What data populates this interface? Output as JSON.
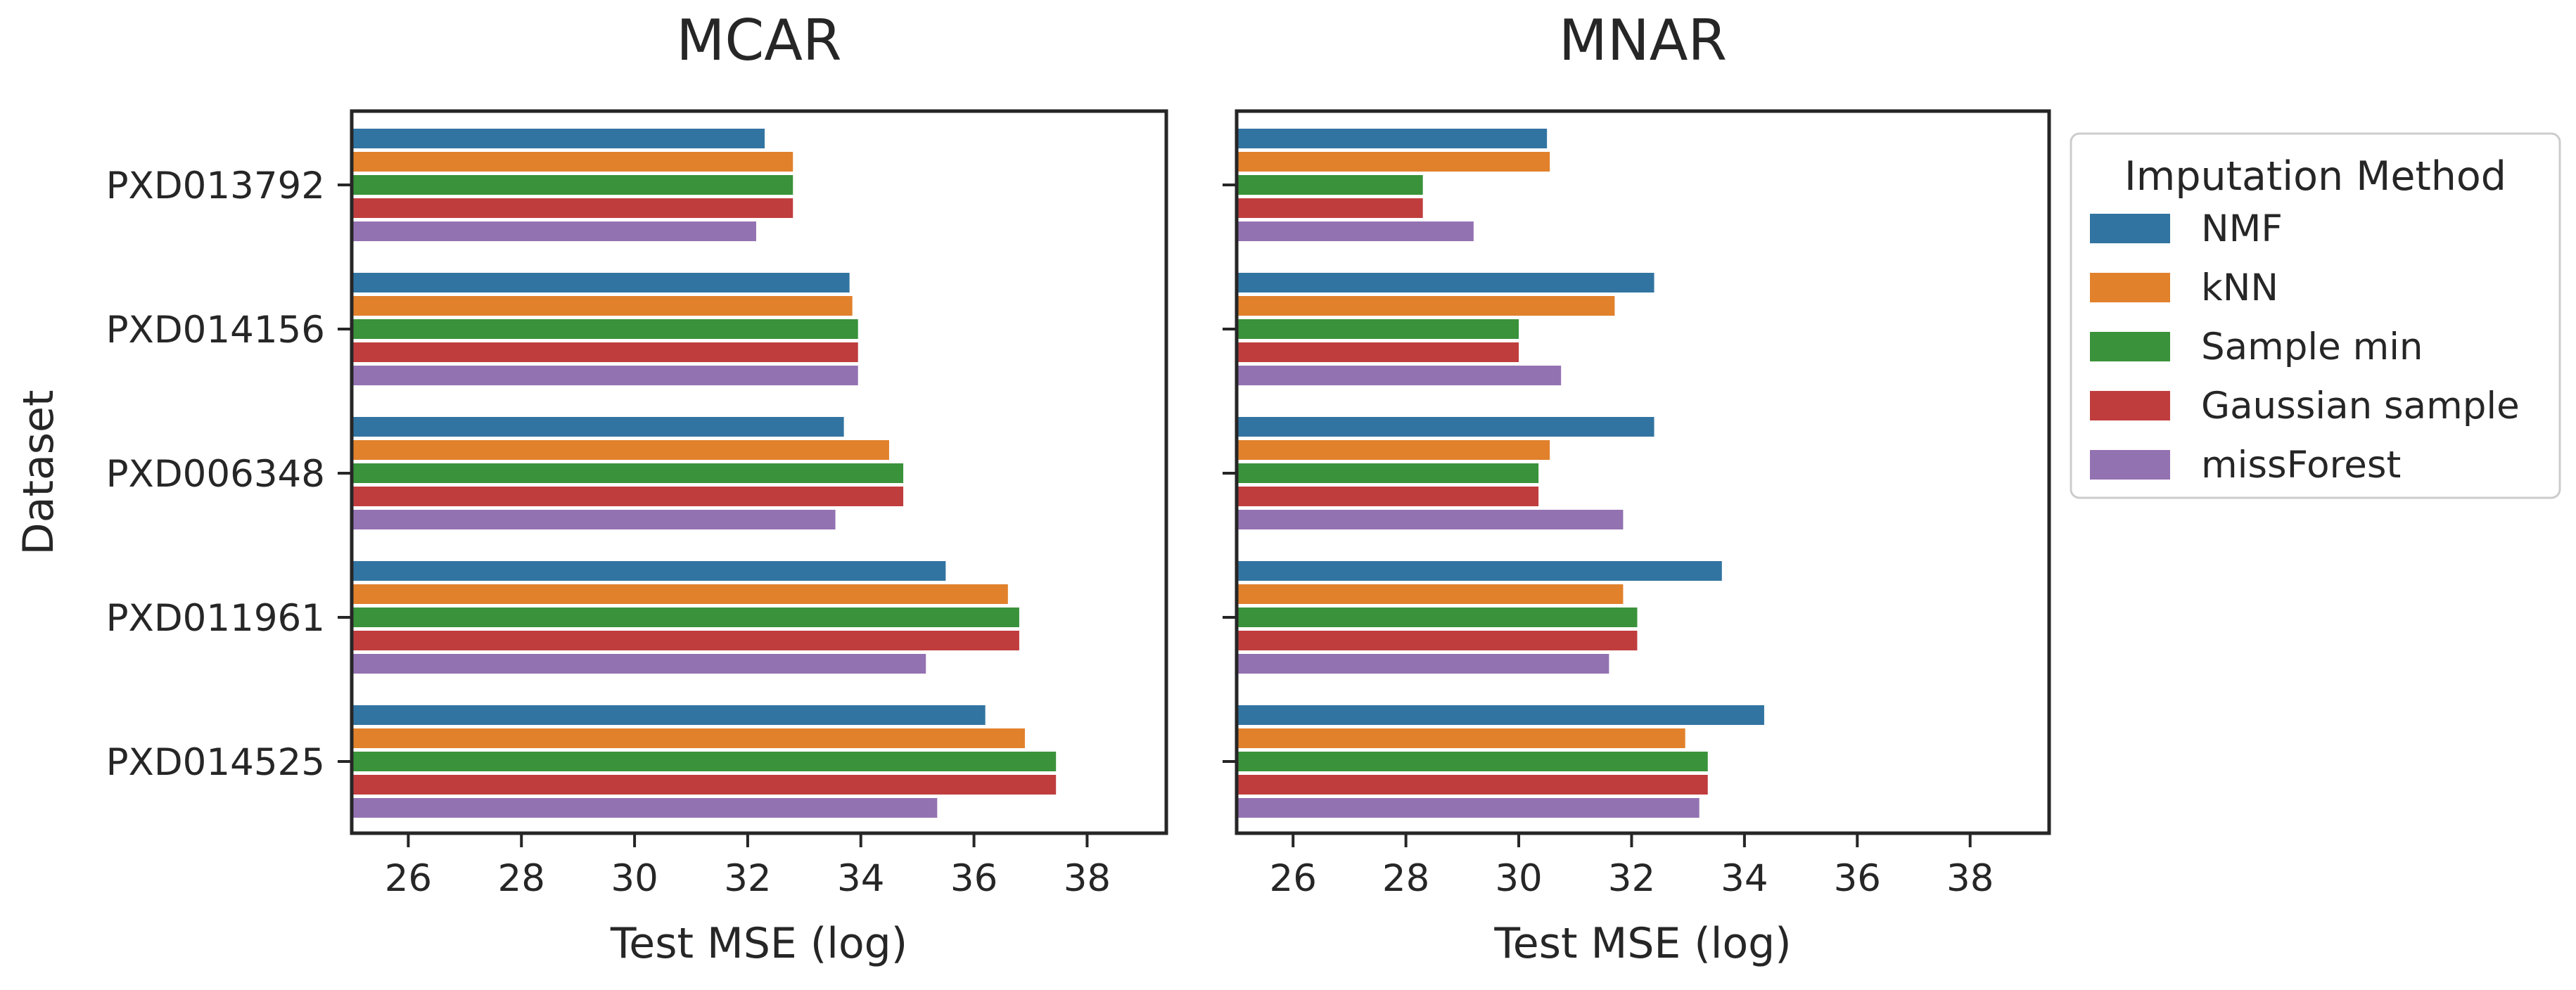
{
  "chart_data": {
    "type": "bar",
    "orientation": "horizontal",
    "shared_y_label": "Dataset",
    "categories": [
      "PXD013792",
      "PXD014156",
      "PXD006348",
      "PXD011961",
      "PXD014525"
    ],
    "legend": {
      "title": "Imputation Method",
      "placement": "outside-right",
      "entries": [
        "NMF",
        "kNN",
        "Sample min",
        "Gaussian sample",
        "missForest"
      ]
    },
    "colors": {
      "NMF": "#3274a1",
      "kNN": "#e1812c",
      "Sample min": "#3a923a",
      "Gaussian sample": "#c03d3e",
      "missForest": "#9372b2"
    },
    "xlim": [
      25,
      39.4
    ],
    "xticks": [
      26,
      28,
      30,
      32,
      34,
      36,
      38
    ],
    "grid": false,
    "panels": [
      {
        "title": "MCAR",
        "xlabel": "Test MSE (log)",
        "series": [
          {
            "name": "NMF",
            "values": [
              32.3,
              33.8,
              33.7,
              35.5,
              36.2
            ]
          },
          {
            "name": "kNN",
            "values": [
              32.8,
              33.85,
              34.5,
              36.6,
              36.9
            ]
          },
          {
            "name": "Sample min",
            "values": [
              32.8,
              33.95,
              34.75,
              36.8,
              37.45
            ]
          },
          {
            "name": "Gaussian sample",
            "values": [
              32.8,
              33.95,
              34.75,
              36.8,
              37.45
            ]
          },
          {
            "name": "missForest",
            "values": [
              32.15,
              33.95,
              33.55,
              35.15,
              35.35
            ]
          }
        ]
      },
      {
        "title": "MNAR",
        "xlabel": "Test MSE (log)",
        "series": [
          {
            "name": "NMF",
            "values": [
              30.5,
              32.4,
              32.4,
              33.6,
              34.35
            ]
          },
          {
            "name": "kNN",
            "values": [
              30.55,
              31.7,
              30.55,
              31.85,
              32.95
            ]
          },
          {
            "name": "Sample min",
            "values": [
              28.3,
              30.0,
              30.35,
              32.1,
              33.35
            ]
          },
          {
            "name": "Gaussian sample",
            "values": [
              28.3,
              30.0,
              30.35,
              32.1,
              33.35
            ]
          },
          {
            "name": "missForest",
            "values": [
              29.2,
              30.75,
              31.85,
              31.6,
              33.2
            ]
          }
        ]
      }
    ]
  }
}
